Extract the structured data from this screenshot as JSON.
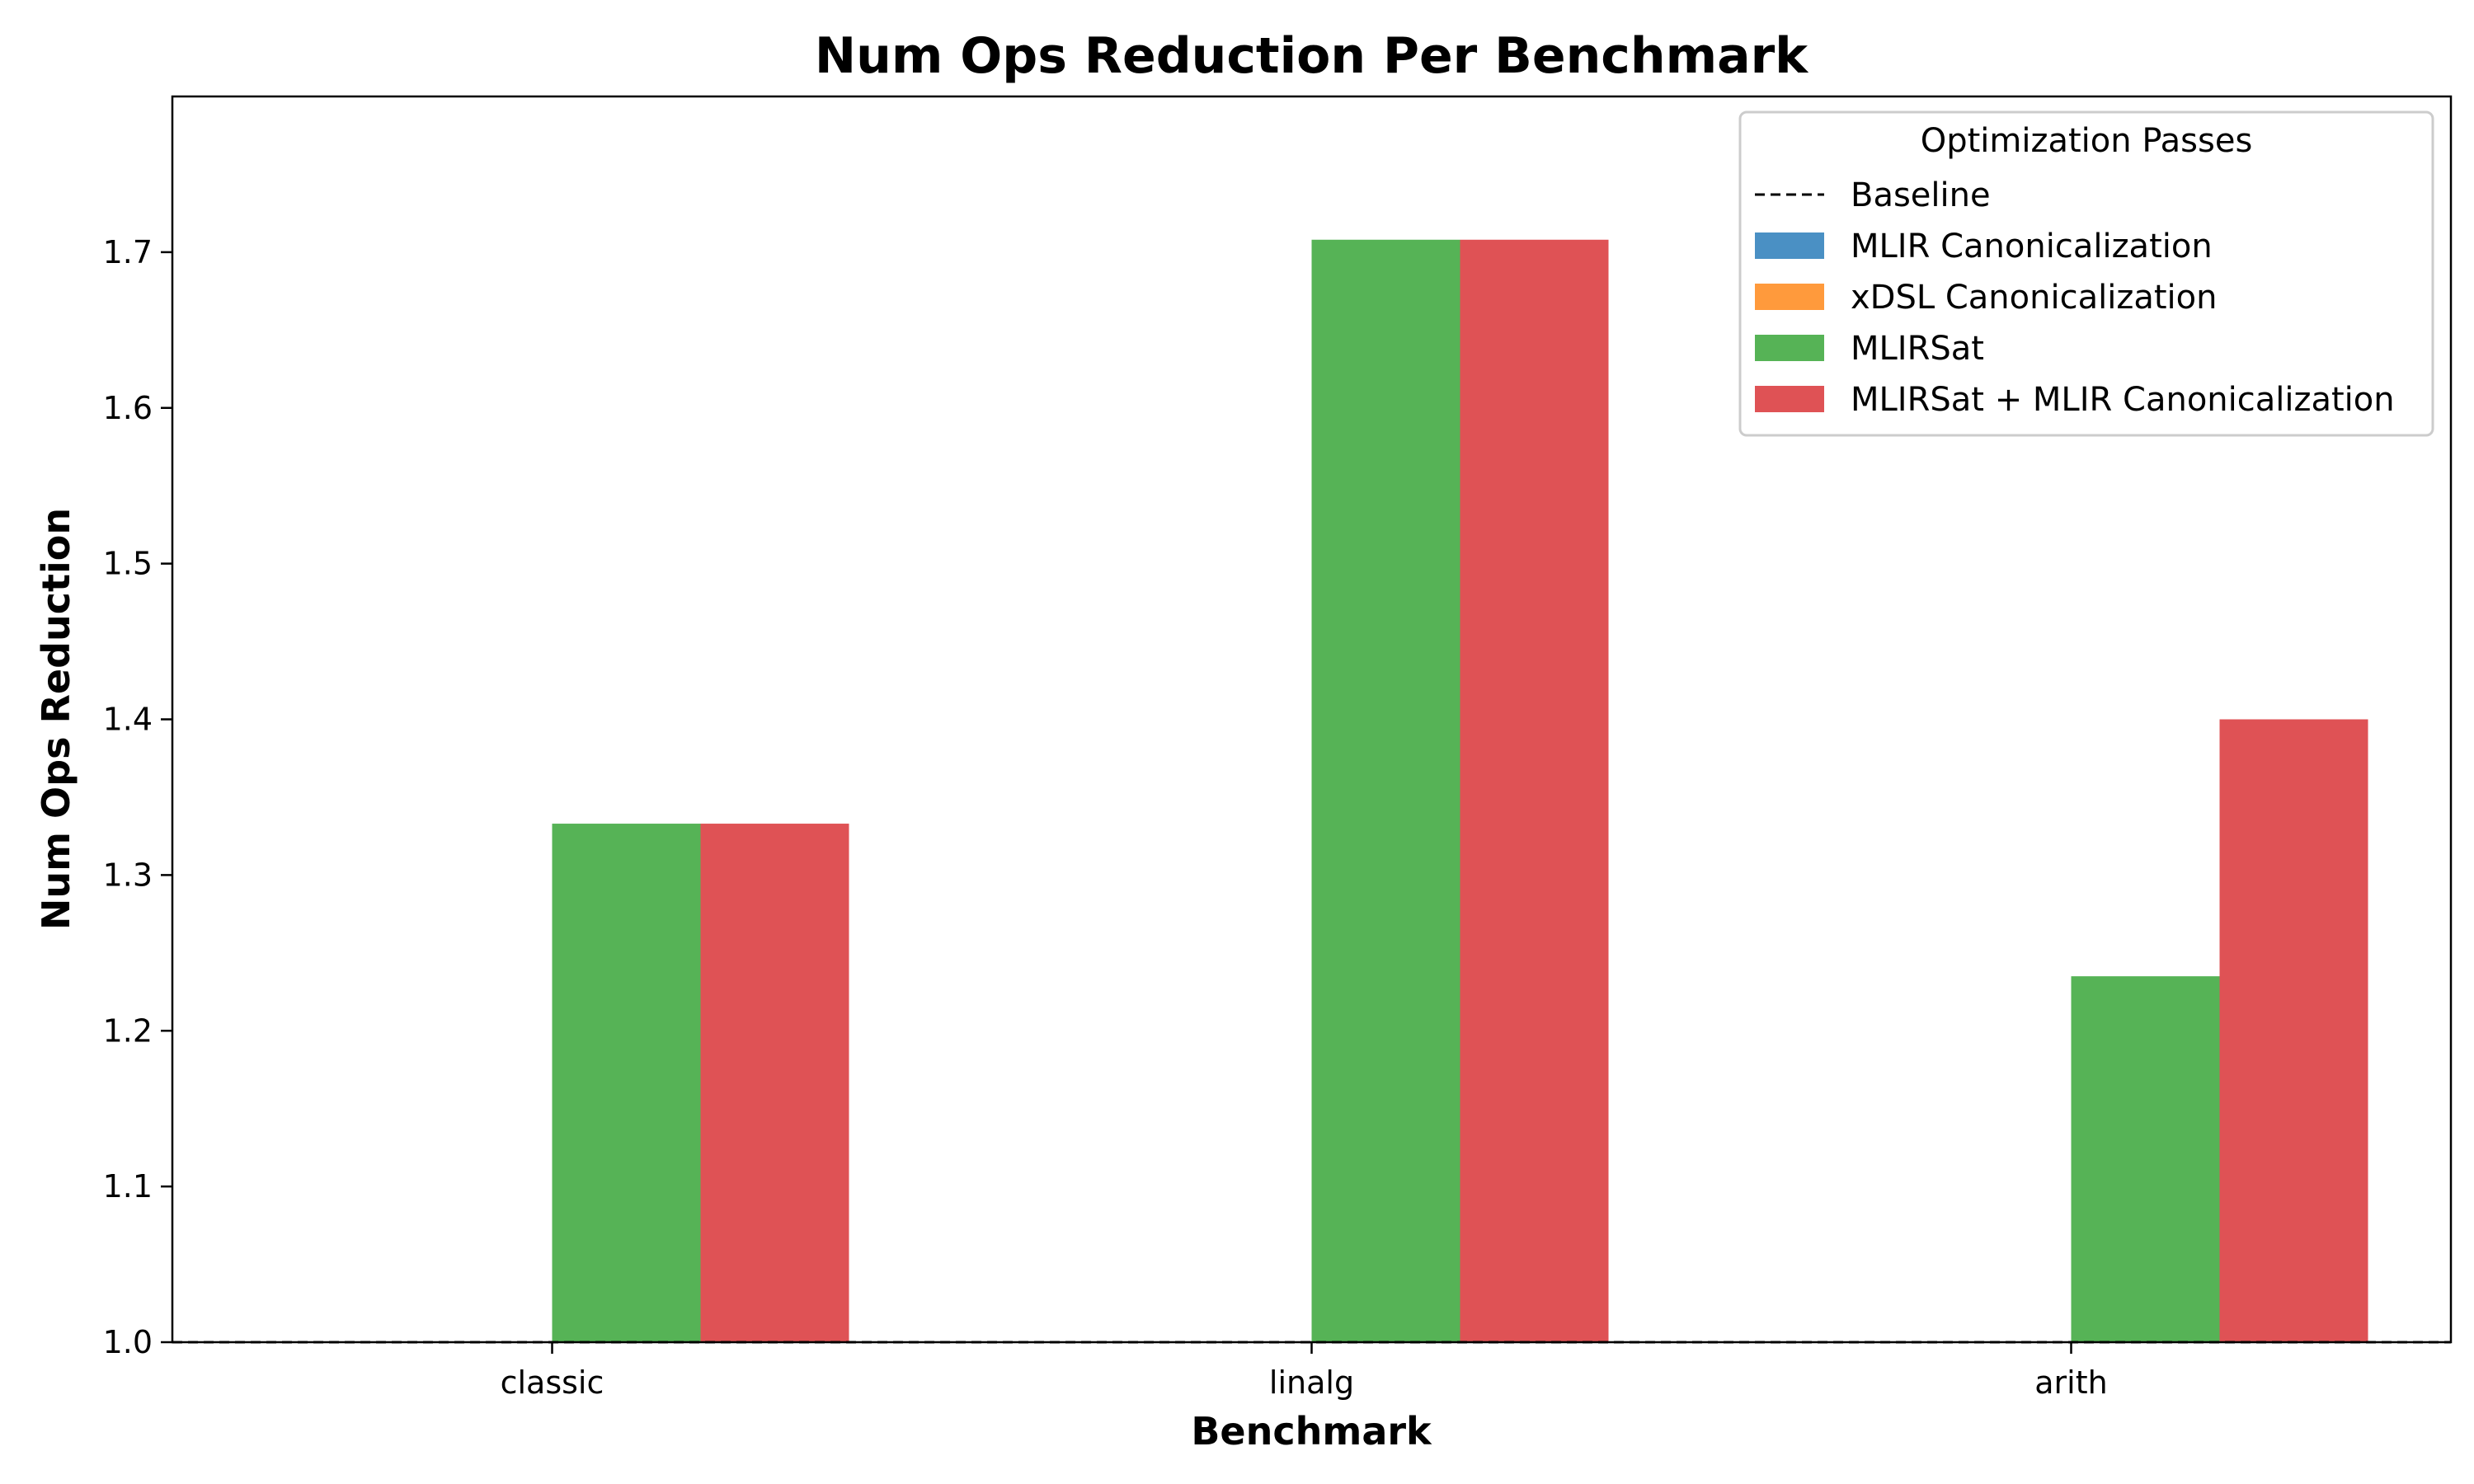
{
  "chart_data": {
    "type": "bar",
    "title": "Num Ops Reduction Per Benchmark",
    "xlabel": "Benchmark",
    "ylabel": "Num Ops Reduction",
    "categories": [
      "classic",
      "linalg",
      "arith"
    ],
    "ylim": [
      1.0,
      1.8
    ],
    "yticks": [
      "1.0",
      "1.1",
      "1.2",
      "1.3",
      "1.4",
      "1.5",
      "1.6",
      "1.7"
    ],
    "baseline": 1.0,
    "grid": false,
    "legend": {
      "title": "Optimization Passes",
      "placement": "top-right",
      "entries": [
        {
          "name": "Baseline",
          "style": "dashed-line",
          "color": "#000000"
        },
        {
          "name": "MLIR Canonicalization",
          "style": "patch",
          "color": "#4a90c4"
        },
        {
          "name": "xDSL Canonicalization",
          "style": "patch",
          "color": "#ff9a3c"
        },
        {
          "name": "MLIRSat",
          "style": "patch",
          "color": "#56b356"
        },
        {
          "name": "MLIRSat + MLIR Canonicalization",
          "style": "patch",
          "color": "#df5255"
        }
      ]
    },
    "series": [
      {
        "name": "MLIR Canonicalization",
        "color": "#4a90c4",
        "values": [
          1.0,
          1.0,
          1.0
        ]
      },
      {
        "name": "xDSL Canonicalization",
        "color": "#ff9a3c",
        "values": [
          1.0,
          1.0,
          1.0
        ]
      },
      {
        "name": "MLIRSat",
        "color": "#56b356",
        "values": [
          1.333,
          1.708,
          1.235
        ]
      },
      {
        "name": "MLIRSat + MLIR Canonicalization",
        "color": "#df5255",
        "values": [
          1.333,
          1.708,
          1.4
        ]
      }
    ]
  }
}
